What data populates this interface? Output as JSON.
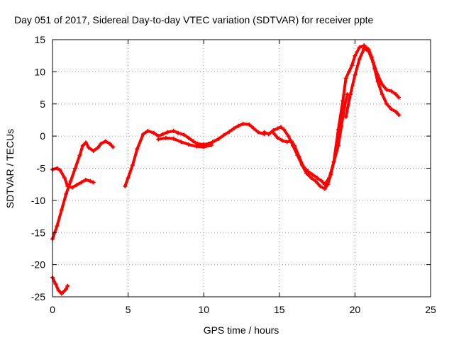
{
  "chart_data": {
    "type": "scatter",
    "title": "Day 051 of 2017, Sidereal Day-to-day VTEC variation (SDTVAR) for receiver ppte",
    "xlabel": "GPS time / hours",
    "ylabel": "SDTVAR / TECUs",
    "xlim": [
      0,
      25
    ],
    "ylim": [
      -25,
      15
    ],
    "xticks": [
      0,
      5,
      10,
      15,
      20,
      25
    ],
    "yticks": [
      -25,
      -20,
      -15,
      -10,
      -5,
      0,
      5,
      10,
      15
    ],
    "grid": true,
    "marker": "+",
    "color": "#ff0000",
    "series": [
      {
        "name": "seg-early-low",
        "x": [
          0.0,
          0.2,
          0.4,
          0.6,
          0.7,
          0.9,
          1.0
        ],
        "y": [
          -22.0,
          -23.0,
          -24.0,
          -24.5,
          -24.3,
          -23.8,
          -23.3
        ]
      },
      {
        "name": "seg-rise-a",
        "x": [
          0.0,
          0.3,
          0.6,
          0.9,
          1.2,
          1.5,
          1.8,
          2.0,
          2.2,
          2.4,
          2.7,
          3.0,
          3.2,
          3.5,
          3.8,
          4.0
        ],
        "y": [
          -16.0,
          -14.0,
          -11.5,
          -9.0,
          -7.0,
          -5.0,
          -3.0,
          -1.5,
          -1.0,
          -1.8,
          -2.3,
          -1.8,
          -1.2,
          -0.8,
          -1.2,
          -1.7
        ]
      },
      {
        "name": "seg-rise-b",
        "x": [
          0.0,
          0.3,
          0.5,
          0.8,
          1.0,
          1.3,
          1.6,
          1.9,
          2.2,
          2.5,
          2.7
        ],
        "y": [
          -5.2,
          -5.0,
          -5.3,
          -6.5,
          -7.8,
          -8.0,
          -7.6,
          -7.2,
          -6.8,
          -7.0,
          -7.2
        ]
      },
      {
        "name": "seg-midday",
        "x": [
          4.8,
          5.0,
          5.3,
          5.6,
          6.0,
          6.3,
          6.7,
          7.0,
          7.3,
          7.6,
          8.0,
          8.3,
          8.7,
          9.0,
          9.3,
          9.6,
          10.0,
          10.3,
          10.6,
          11.0,
          11.3,
          11.7,
          12.0,
          12.3,
          12.6,
          13.0,
          13.3,
          13.6,
          14.0
        ],
        "y": [
          -7.8,
          -6.5,
          -4.5,
          -2.0,
          0.3,
          0.8,
          0.5,
          0.0,
          0.3,
          0.6,
          0.8,
          0.5,
          0.2,
          -0.3,
          -0.8,
          -1.2,
          -1.3,
          -1.2,
          -0.9,
          -0.4,
          0.1,
          0.7,
          1.2,
          1.6,
          1.9,
          1.8,
          1.2,
          0.6,
          0.3
        ]
      },
      {
        "name": "seg-midday-b",
        "x": [
          7.0,
          7.5,
          8.0,
          8.5,
          9.0,
          9.5,
          10.0,
          10.5
        ],
        "y": [
          -0.5,
          -0.3,
          -0.4,
          -0.9,
          -1.3,
          -1.6,
          -1.7,
          -1.4
        ]
      },
      {
        "name": "seg-dip-a",
        "x": [
          14.0,
          14.3,
          14.6,
          14.9,
          15.1,
          15.3,
          15.6,
          15.9,
          16.2,
          16.5,
          16.8,
          17.1,
          17.4,
          17.7,
          18.0,
          18.2,
          18.4,
          18.6
        ],
        "y": [
          0.6,
          0.3,
          0.9,
          1.2,
          1.4,
          1.0,
          0.0,
          -1.5,
          -3.0,
          -4.5,
          -5.8,
          -6.5,
          -7.0,
          -7.8,
          -8.2,
          -7.5,
          -6.0,
          -4.0
        ]
      },
      {
        "name": "seg-dip-b",
        "x": [
          14.6,
          14.9,
          15.2,
          15.5,
          15.8,
          16.0,
          16.3,
          16.6,
          16.9,
          17.2,
          17.5,
          17.8,
          18.0,
          18.3,
          18.6,
          18.9,
          19.1,
          19.3,
          19.5
        ],
        "y": [
          0.5,
          -0.3,
          -0.7,
          -0.9,
          -0.8,
          -1.5,
          -3.2,
          -4.8,
          -5.5,
          -6.0,
          -6.5,
          -7.0,
          -7.5,
          -6.5,
          -4.0,
          -1.5,
          1.5,
          4.5,
          6.5
        ]
      },
      {
        "name": "seg-peak-a",
        "x": [
          18.6,
          18.9,
          19.2,
          19.4,
          19.6,
          19.8,
          20.0,
          20.3,
          20.6,
          20.9,
          21.1,
          21.3,
          21.5,
          21.8,
          22.1,
          22.4,
          22.7,
          22.9
        ],
        "y": [
          -4.0,
          1.0,
          5.5,
          9.0,
          10.0,
          11.0,
          12.5,
          13.8,
          14.1,
          13.5,
          12.3,
          10.5,
          8.5,
          6.5,
          5.0,
          4.2,
          3.8,
          3.3
        ]
      },
      {
        "name": "seg-peak-b",
        "x": [
          19.4,
          19.7,
          20.0,
          20.3,
          20.6,
          20.9,
          21.2,
          21.5,
          21.8,
          22.1,
          22.4,
          22.7,
          22.9
        ],
        "y": [
          3.0,
          6.5,
          9.5,
          12.0,
          13.6,
          13.2,
          11.5,
          9.5,
          8.0,
          7.2,
          7.0,
          6.5,
          6.0
        ]
      }
    ]
  }
}
